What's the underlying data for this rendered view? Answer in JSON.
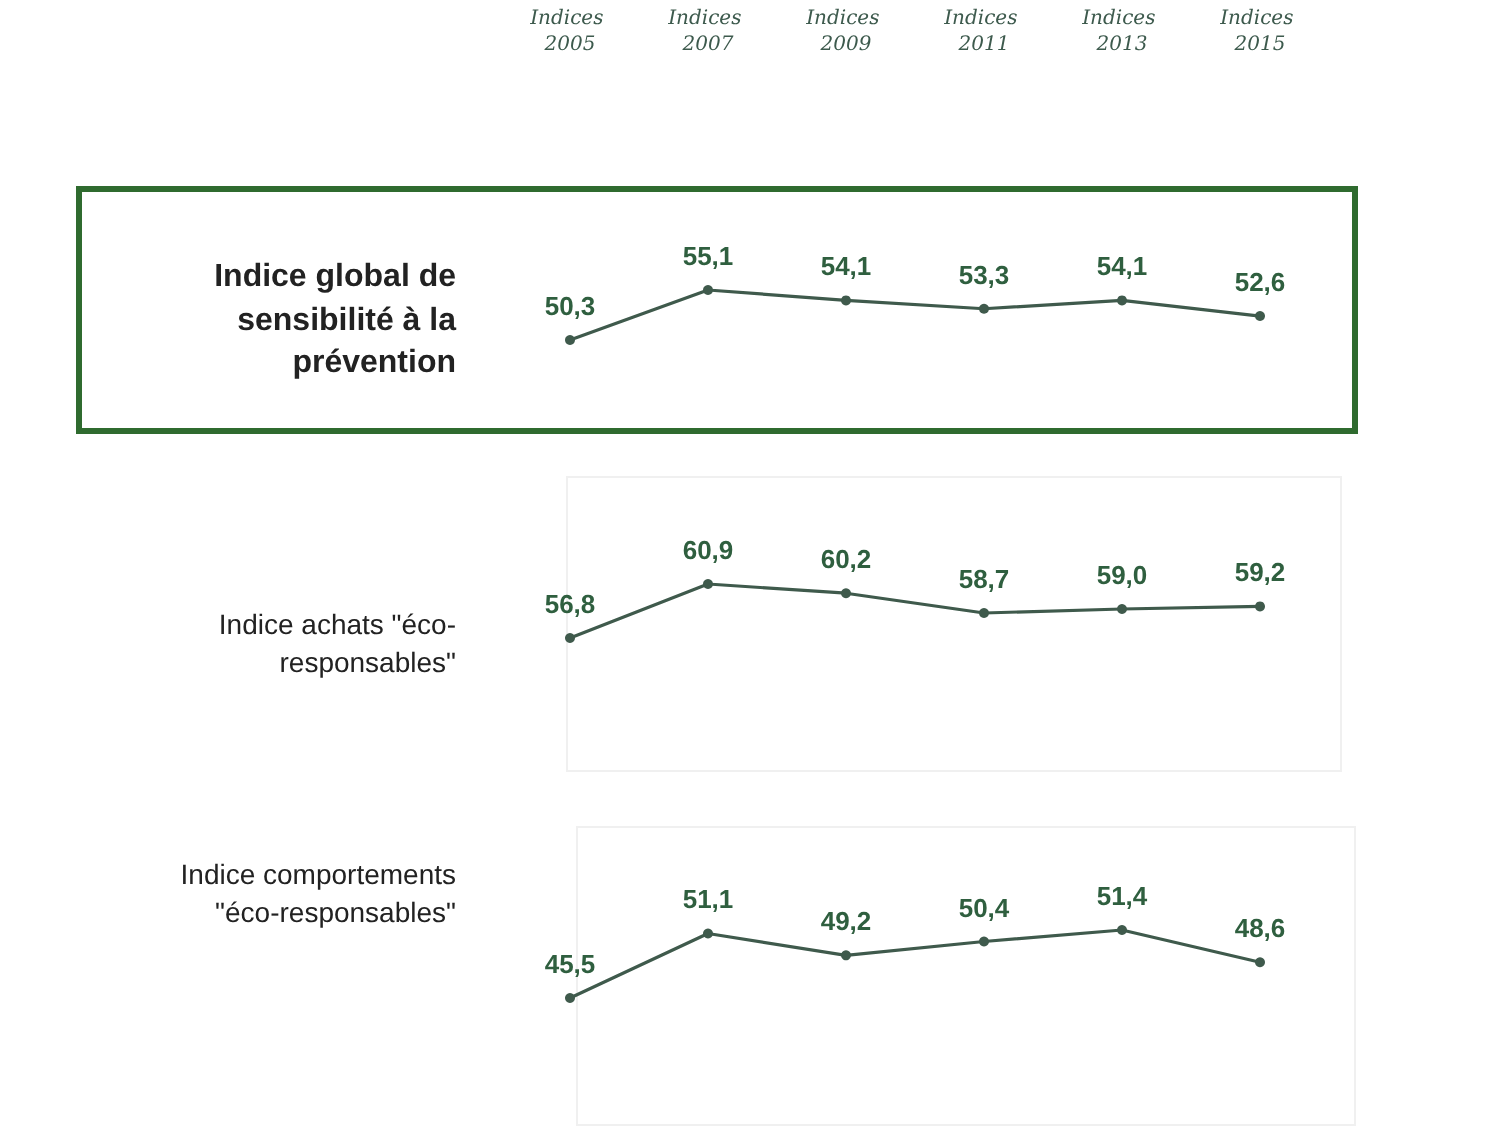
{
  "chart_data": [
    {
      "type": "line",
      "title": "Indice global de sensibilité à la prévention",
      "categories": [
        "Indices 2005",
        "Indices 2007",
        "Indices 2009",
        "Indices 2011",
        "Indices 2013",
        "Indices 2015"
      ],
      "series": [
        {
          "color": "#3f5a4c",
          "values": [
            50.3,
            55.1,
            54.1,
            53.3,
            54.1,
            52.6
          ],
          "value_labels": [
            "50,3",
            "55,1",
            "54,1",
            "53,3",
            "54,1",
            "52,6"
          ]
        }
      ],
      "marker": "circle",
      "tick_labels": "x",
      "grid": false
    },
    {
      "type": "line",
      "title": "Indice achats \"éco-responsables\"",
      "categories": [
        "Indices 2005",
        "Indices 2007",
        "Indices 2009",
        "Indices 2011",
        "Indices 2013",
        "Indices 2015"
      ],
      "series": [
        {
          "color": "#3f5a4c",
          "values": [
            56.8,
            60.9,
            60.2,
            58.7,
            59.0,
            59.2
          ],
          "value_labels": [
            "56,8",
            "60,9",
            "60,2",
            "58,7",
            "59,0",
            "59,2"
          ]
        }
      ],
      "marker": "circle",
      "tick_labels": false,
      "grid": false
    },
    {
      "type": "line",
      "title": "Indice comportements \"éco-responsables\"",
      "categories": [
        "Indices 2005",
        "Indices 2007",
        "Indices 2009",
        "Indices 2011",
        "Indices 2013",
        "Indices 2015"
      ],
      "series": [
        {
          "color": "#3f5a4c",
          "values": [
            45.5,
            51.1,
            49.2,
            50.4,
            51.4,
            48.6
          ],
          "value_labels": [
            "45,5",
            "51,1",
            "49,2",
            "50,4",
            "51,4",
            "48,6"
          ]
        }
      ],
      "marker": "circle",
      "tick_labels": false,
      "grid": false
    }
  ]
}
